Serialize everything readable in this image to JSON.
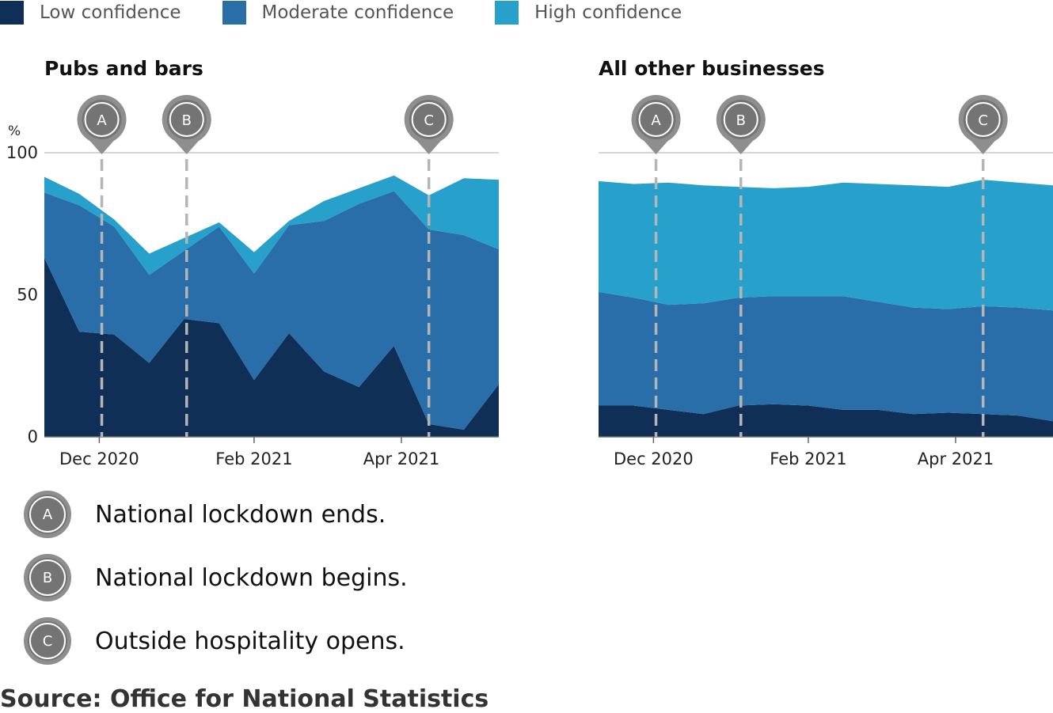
{
  "legend": [
    {
      "label": "Low confidence",
      "color": "#0f2f57"
    },
    {
      "label": "Moderate confidence",
      "color": "#296ea8"
    },
    {
      "label": "High confidence",
      "color": "#27a0cc"
    }
  ],
  "chart_data": [
    {
      "type": "area",
      "stacked": true,
      "title": "Pubs and bars",
      "ylabel": "%",
      "ylim": [
        0,
        100
      ],
      "yticks": [
        0,
        50,
        100
      ],
      "xticks": [
        "Dec 2020",
        "Feb 2021",
        "Apr 2021"
      ],
      "x": [
        "2020-11-09",
        "2020-11-23",
        "2020-12-07",
        "2020-12-21",
        "2021-01-04",
        "2021-01-18",
        "2021-02-01",
        "2021-02-15",
        "2021-03-01",
        "2021-03-15",
        "2021-03-29",
        "2021-04-12",
        "2021-04-26",
        "2021-05-10"
      ],
      "series": [
        {
          "name": "Low confidence",
          "values": [
            63,
            37,
            36,
            26,
            41.5,
            40,
            20,
            36.5,
            23,
            17.5,
            32,
            4.5,
            2.5,
            18.5
          ]
        },
        {
          "name": "Moderate confidence",
          "values": [
            23,
            44.5,
            38,
            31,
            24,
            34,
            37.5,
            38,
            53,
            64.5,
            54.5,
            68.5,
            68.5,
            47.5
          ]
        },
        {
          "name": "High confidence",
          "values": [
            5.5,
            4,
            2.5,
            7.5,
            4.5,
            1.5,
            7.5,
            1.5,
            7,
            5.5,
            5.5,
            12,
            20,
            24.5
          ]
        }
      ],
      "markers": [
        {
          "id": "A",
          "date": "2020-12-02"
        },
        {
          "id": "B",
          "date": "2021-01-05"
        },
        {
          "id": "C",
          "date": "2021-04-12"
        }
      ]
    },
    {
      "type": "area",
      "stacked": true,
      "title": "All other businesses",
      "ylim": [
        0,
        100
      ],
      "xticks": [
        "Dec 2020",
        "Feb 2021",
        "Apr 2021"
      ],
      "x": [
        "2020-11-09",
        "2020-11-23",
        "2020-12-07",
        "2020-12-21",
        "2021-01-04",
        "2021-01-18",
        "2021-02-01",
        "2021-02-15",
        "2021-03-01",
        "2021-03-15",
        "2021-03-29",
        "2021-04-12",
        "2021-04-26",
        "2021-05-10"
      ],
      "series": [
        {
          "name": "Low confidence",
          "values": [
            11,
            11,
            9.5,
            8,
            11,
            11.5,
            11,
            9.5,
            9.5,
            8,
            8.5,
            8,
            7.5,
            5.5
          ]
        },
        {
          "name": "Moderate confidence",
          "values": [
            40,
            38,
            37,
            39,
            38,
            38,
            38.5,
            40,
            38,
            37.5,
            36.5,
            38,
            38,
            39
          ]
        },
        {
          "name": "High confidence",
          "values": [
            39,
            40,
            43,
            41.5,
            39,
            38,
            38.5,
            40,
            41.5,
            43,
            43,
            44.5,
            44,
            44
          ]
        }
      ],
      "markers": [
        {
          "id": "A",
          "date": "2020-12-02"
        },
        {
          "id": "B",
          "date": "2021-01-05"
        },
        {
          "id": "C",
          "date": "2021-04-12"
        }
      ]
    }
  ],
  "notes": [
    {
      "id": "A",
      "text": "National lockdown ends."
    },
    {
      "id": "B",
      "text": "National lockdown begins."
    },
    {
      "id": "C",
      "text": "Outside hospitality opens."
    }
  ],
  "source": "Source: Office for National Statistics"
}
